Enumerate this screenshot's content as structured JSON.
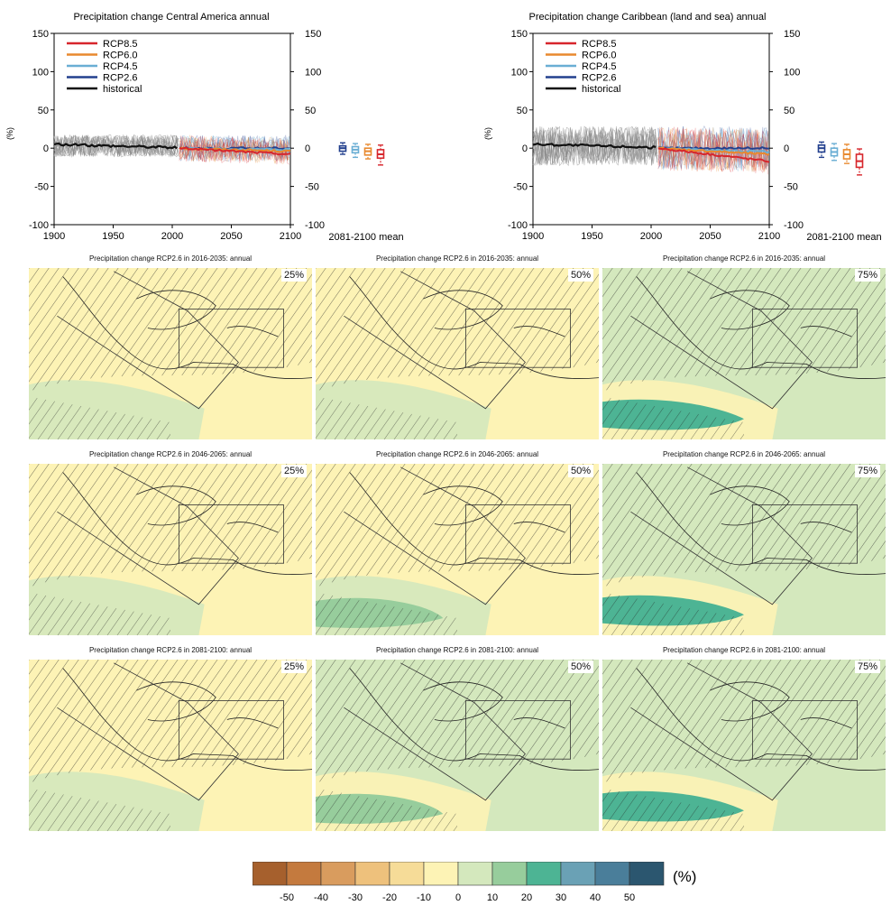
{
  "timeseries": [
    {
      "title": "Precipitation change Central America annual",
      "ylabel": "(%)",
      "xticks": [
        "1900",
        "1950",
        "2000",
        "2050",
        "2100"
      ],
      "yticks": [
        "150",
        "100",
        "50",
        "0",
        "-50",
        "-100"
      ],
      "xlim": [
        1900,
        2100
      ],
      "ylim": [
        -100,
        150
      ],
      "legend": [
        "RCP8.5",
        "RCP6.0",
        "RCP4.5",
        "RCP2.6",
        "historical"
      ],
      "mean_label": "2081-2100 mean",
      "spread": {
        "historical": 18,
        "future": 20
      },
      "boxes": [
        {
          "name": "RCP2.6",
          "median": 0,
          "q1": -4,
          "q3": 3,
          "min": -8,
          "max": 7
        },
        {
          "name": "RCP4.5",
          "median": -2,
          "q1": -6,
          "q3": 2,
          "min": -12,
          "max": 6
        },
        {
          "name": "RCP6.0",
          "median": -4,
          "q1": -9,
          "q3": 0,
          "min": -14,
          "max": 5
        },
        {
          "name": "RCP8.5",
          "median": -8,
          "q1": -13,
          "q3": -2,
          "min": -22,
          "max": 4
        }
      ]
    },
    {
      "title": "Precipitation change Caribbean (land and sea) annual",
      "ylabel": "(%)",
      "xticks": [
        "1900",
        "1950",
        "2000",
        "2050",
        "2100"
      ],
      "yticks": [
        "150",
        "100",
        "50",
        "0",
        "-50",
        "-100"
      ],
      "xlim": [
        1900,
        2100
      ],
      "ylim": [
        -100,
        150
      ],
      "legend": [
        "RCP8.5",
        "RCP6.0",
        "RCP4.5",
        "RCP2.6",
        "historical"
      ],
      "mean_label": "2081-2100 mean",
      "spread": {
        "historical": 32,
        "future": 34
      },
      "boxes": [
        {
          "name": "RCP2.6",
          "median": 0,
          "q1": -5,
          "q3": 4,
          "min": -12,
          "max": 8
        },
        {
          "name": "RCP4.5",
          "median": -5,
          "q1": -10,
          "q3": 0,
          "min": -16,
          "max": 6
        },
        {
          "name": "RCP6.0",
          "median": -8,
          "q1": -14,
          "q3": -2,
          "min": -20,
          "max": 5
        },
        {
          "name": "RCP8.5",
          "median": -17,
          "q1": -25,
          "q3": -8,
          "min": -35,
          "max": -1
        }
      ]
    }
  ],
  "series_colors": {
    "RCP8.5": "#d7262c",
    "RCP6.0": "#e8892f",
    "RCP4.5": "#6aaed4",
    "RCP2.6": "#23408e",
    "historical": "#111111"
  },
  "maps": [
    {
      "title": "Precipitation change RCP2.6 in 2016-2035: annual",
      "percentile": "25%",
      "dominant_class": "-10–0"
    },
    {
      "title": "Precipitation change RCP2.6 in 2016-2035: annual",
      "percentile": "50%",
      "dominant_class": "-10–0"
    },
    {
      "title": "Precipitation change RCP2.6 in 2016-2035: annual",
      "percentile": "75%",
      "dominant_class": "0–10"
    },
    {
      "title": "Precipitation change RCP2.6 in 2046-2065: annual",
      "percentile": "25%",
      "dominant_class": "-10–0"
    },
    {
      "title": "Precipitation change RCP2.6 in 2046-2065: annual",
      "percentile": "50%",
      "dominant_class": "-10–0"
    },
    {
      "title": "Precipitation change RCP2.6 in 2046-2065: annual",
      "percentile": "75%",
      "dominant_class": "0–10"
    },
    {
      "title": "Precipitation change RCP2.6 in 2081-2100: annual",
      "percentile": "25%",
      "dominant_class": "-10–0"
    },
    {
      "title": "Precipitation change RCP2.6 in 2081-2100: annual",
      "percentile": "50%",
      "dominant_class": "0–10"
    },
    {
      "title": "Precipitation change RCP2.6 in 2081-2100: annual",
      "percentile": "75%",
      "dominant_class": "0–10"
    }
  ],
  "colorbar": {
    "unit": "(%)",
    "ticks": [
      "-50",
      "-40",
      "-30",
      "-20",
      "-10",
      "0",
      "10",
      "20",
      "30",
      "40",
      "50"
    ],
    "colors": [
      "#a6602d",
      "#c47a3e",
      "#d99c5e",
      "#eec17c",
      "#f6dc98",
      "#fdf3b5",
      "#d4e8bd",
      "#97cd9c",
      "#4db494",
      "#6aa1b5",
      "#4a7e9a",
      "#2b566f"
    ]
  }
}
